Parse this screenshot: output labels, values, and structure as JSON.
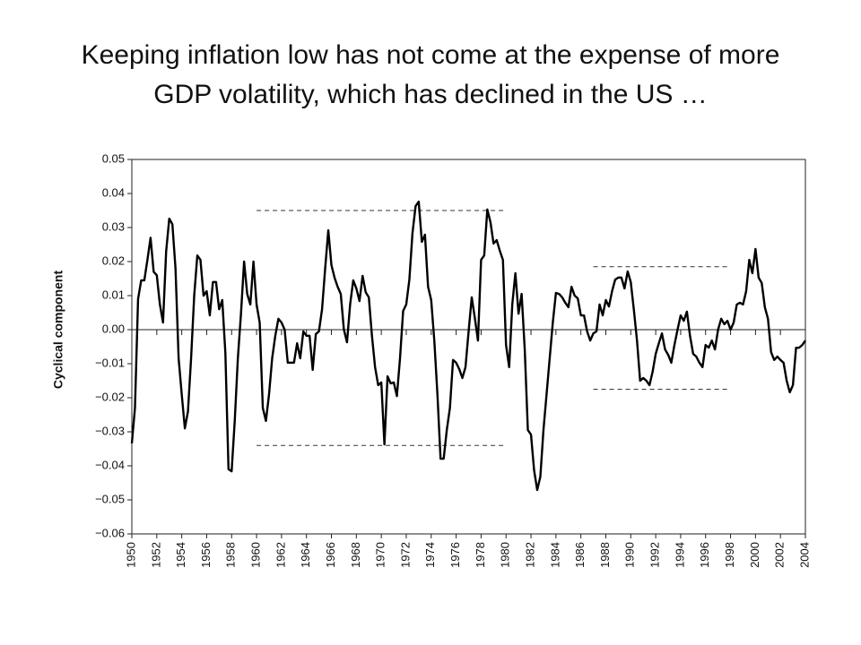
{
  "chart_data": {
    "type": "line",
    "title": "Keeping inflation low has not come at the expense of more GDP volatility, which has declined in the US …",
    "y_label": "Cyclical component",
    "xlim": [
      1950,
      2004
    ],
    "ylim": [
      -0.06,
      0.05
    ],
    "xticks": [
      1950,
      1952,
      1954,
      1956,
      1958,
      1960,
      1962,
      1964,
      1966,
      1968,
      1970,
      1972,
      1974,
      1976,
      1978,
      1980,
      1982,
      1984,
      1986,
      1988,
      1990,
      1992,
      1994,
      1996,
      1998,
      2000,
      2002,
      2004
    ],
    "yticks": [
      0.05,
      0.04,
      0.03,
      0.02,
      0.01,
      {
        "value": 0,
        "label": "0.00"
      },
      {
        "value": -0.01,
        "label": "−0.01"
      },
      {
        "value": -0.02,
        "label": "−0.02"
      },
      {
        "value": -0.03,
        "label": "−0.03"
      },
      {
        "value": -0.04,
        "label": "−0.04"
      },
      {
        "value": -0.05,
        "label": "−0.05"
      },
      {
        "value": -0.06,
        "label": "−0.06"
      }
    ],
    "reference_lines": [
      {
        "x": [
          1960,
          1980
        ],
        "y": 0.035
      },
      {
        "x": [
          1960,
          1980
        ],
        "y": -0.034
      },
      {
        "x": [
          1987,
          1998
        ],
        "y": 0.0185
      },
      {
        "x": [
          1987,
          1998
        ],
        "y": -0.0175
      }
    ],
    "x": [
      1950,
      1950.25,
      1950.5,
      1950.75,
      1951,
      1951.25,
      1951.5,
      1951.75,
      1952,
      1952.25,
      1952.5,
      1952.75,
      1953,
      1953.25,
      1953.5,
      1953.75,
      1954,
      1954.25,
      1954.5,
      1954.75,
      1955,
      1955.25,
      1955.5,
      1955.75,
      1956,
      1956.25,
      1956.5,
      1956.75,
      1957,
      1957.25,
      1957.5,
      1957.75,
      1958,
      1958.25,
      1958.5,
      1958.75,
      1959,
      1959.25,
      1959.5,
      1959.75,
      1960,
      1960.25,
      1960.5,
      1960.75,
      1961,
      1961.25,
      1961.5,
      1961.75,
      1962,
      1962.25,
      1962.5,
      1962.75,
      1963,
      1963.25,
      1963.5,
      1963.75,
      1964,
      1964.25,
      1964.5,
      1964.75,
      1965,
      1965.25,
      1965.5,
      1965.75,
      1966,
      1966.25,
      1966.5,
      1966.75,
      1967,
      1967.25,
      1967.5,
      1967.75,
      1968,
      1968.25,
      1968.5,
      1968.75,
      1969,
      1969.25,
      1969.5,
      1969.75,
      1970,
      1970.25,
      1970.5,
      1970.75,
      1971,
      1971.25,
      1971.5,
      1971.75,
      1972,
      1972.25,
      1972.5,
      1972.75,
      1973,
      1973.25,
      1973.5,
      1973.75,
      1974,
      1974.25,
      1974.5,
      1974.75,
      1975,
      1975.25,
      1975.5,
      1975.75,
      1976,
      1976.25,
      1976.5,
      1976.75,
      1977,
      1977.25,
      1977.5,
      1977.75,
      1978,
      1978.25,
      1978.5,
      1978.75,
      1979,
      1979.25,
      1979.5,
      1979.75,
      1980,
      1980.25,
      1980.5,
      1980.75,
      1981,
      1981.25,
      1981.5,
      1981.75,
      1982,
      1982.25,
      1982.5,
      1982.75,
      1983,
      1983.25,
      1983.5,
      1983.75,
      1984,
      1984.25,
      1984.5,
      1984.75,
      1985,
      1985.25,
      1985.5,
      1985.75,
      1986,
      1986.25,
      1986.5,
      1986.75,
      1987,
      1987.25,
      1987.5,
      1987.75,
      1988,
      1988.25,
      1988.5,
      1988.75,
      1989,
      1989.25,
      1989.5,
      1989.75,
      1990,
      1990.25,
      1990.5,
      1990.75,
      1991,
      1991.25,
      1991.5,
      1991.75,
      1992,
      1992.25,
      1992.5,
      1992.75,
      1993,
      1993.25,
      1993.5,
      1993.75,
      1994,
      1994.25,
      1994.5,
      1994.75,
      1995,
      1995.25,
      1995.5,
      1995.75,
      1996,
      1996.25,
      1996.5,
      1996.75,
      1997,
      1997.25,
      1997.5,
      1997.75,
      1998,
      1998.25,
      1998.5,
      1998.75,
      1999,
      1999.25,
      1999.5,
      1999.75,
      2000,
      2000.25,
      2000.5,
      2000.75,
      2001,
      2001.25,
      2001.5,
      2001.75,
      2002,
      2002.25,
      2002.5,
      2002.75,
      2003,
      2003.25,
      2003.5,
      2003.75,
      2004
    ],
    "series": [
      {
        "name": "Cyclical component",
        "color": "#000000",
        "values": [
          -0.0334,
          -0.023,
          0.009,
          0.0145,
          0.0145,
          0.0205,
          0.027,
          0.017,
          0.016,
          0.0074,
          0.0021,
          0.023,
          0.0326,
          0.031,
          0.018,
          -0.0084,
          -0.019,
          -0.029,
          -0.024,
          -0.0084,
          0.01,
          0.0218,
          0.0205,
          0.01,
          0.0113,
          0.0042,
          0.014,
          0.014,
          0.006,
          0.0087,
          -0.007,
          -0.041,
          -0.0416,
          -0.0268,
          -0.0084,
          0.0047,
          0.02,
          0.0105,
          0.0074,
          0.02,
          0.0074,
          0.0021,
          -0.023,
          -0.0268,
          -0.019,
          -0.0084,
          -0.0018,
          0.0032,
          0.0021,
          0,
          -0.0097,
          -0.0097,
          -0.0097,
          -0.004,
          -0.0084,
          -0.0005,
          -0.0018,
          -0.0018,
          -0.0118,
          -0.0013,
          -0.0005,
          0.006,
          0.018,
          0.0292,
          0.019,
          0.0153,
          0.0126,
          0.0105,
          0,
          -0.0037,
          0.0074,
          0.0145,
          0.0121,
          0.0084,
          0.0158,
          0.011,
          0.0095,
          -0.0018,
          -0.011,
          -0.0163,
          -0.0155,
          -0.0337,
          -0.0137,
          -0.0158,
          -0.0155,
          -0.0195,
          -0.0084,
          0.0055,
          0.0074,
          0.0147,
          0.0284,
          0.0363,
          0.0376,
          0.0258,
          0.0279,
          0.0126,
          0.0087,
          -0.0032,
          -0.019,
          -0.0379,
          -0.0379,
          -0.0295,
          -0.023,
          -0.0089,
          -0.0097,
          -0.0116,
          -0.0142,
          -0.011,
          -0.0005,
          0.0095,
          0.0034,
          -0.0032,
          0.0205,
          0.0218,
          0.0353,
          0.0316,
          0.0253,
          0.0263,
          0.0232,
          0.0205,
          -0.0045,
          -0.011,
          0.0074,
          0.0166,
          0.0047,
          0.0105,
          -0.0058,
          -0.0295,
          -0.0308,
          -0.0413,
          -0.0471,
          -0.0432,
          -0.0295,
          -0.019,
          -0.0084,
          0.0021,
          0.0108,
          0.0105,
          0.0095,
          0.0079,
          0.0066,
          0.0126,
          0.01,
          0.0092,
          0.0042,
          0.0042,
          -0.0005,
          -0.0032,
          -0.0011,
          -0.0005,
          0.0074,
          0.0042,
          0.0087,
          0.0068,
          0.0113,
          0.0147,
          0.0153,
          0.0153,
          0.0121,
          0.0171,
          0.014,
          0.0058,
          -0.0032,
          -0.015,
          -0.0142,
          -0.015,
          -0.0163,
          -0.0124,
          -0.0071,
          -0.004,
          -0.0011,
          -0.0058,
          -0.0074,
          -0.0097,
          -0.0045,
          0,
          0.0042,
          0.0026,
          0.0053,
          -0.0018,
          -0.0071,
          -0.0079,
          -0.0097,
          -0.011,
          -0.0045,
          -0.0053,
          -0.0032,
          -0.0058,
          0,
          0.0032,
          0.0016,
          0.0026,
          0,
          0.0021,
          0.0074,
          0.0079,
          0.0074,
          0.0113,
          0.0205,
          0.0166,
          0.0237,
          0.0153,
          0.0137,
          0.0066,
          0.0032,
          -0.0066,
          -0.0089,
          -0.0079,
          -0.0089,
          -0.0097,
          -0.015,
          -0.0184,
          -0.0163,
          -0.0053,
          -0.0053,
          -0.0045,
          -0.0032
        ]
      }
    ]
  }
}
